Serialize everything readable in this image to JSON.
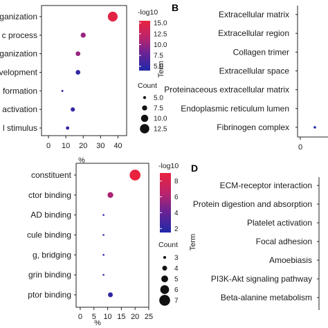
{
  "panels": [
    "B",
    "D"
  ],
  "chart_data": [
    {
      "type": "scatter",
      "categories": [
        "rganization",
        "c process",
        "rganization",
        "evelopment",
        "formation",
        "activation",
        "l stimulus"
      ],
      "values": [
        37,
        20,
        17,
        17,
        8,
        14,
        11
      ],
      "colors": [
        15,
        10,
        10,
        5,
        5,
        5,
        5
      ],
      "counts": [
        13,
        7.5,
        7,
        7,
        4,
        6.5,
        5.5
      ],
      "xlabel": "%",
      "xticks": [
        0,
        10,
        20,
        30,
        40
      ],
      "color_legend": {
        "title": "-log10",
        "ticks": [
          "15.0",
          "12.5",
          "10.0",
          "7.5",
          "5.0"
        ],
        "range": [
          4.0,
          15.5
        ]
      },
      "size_legend": {
        "title": "Count",
        "ticks": [
          "5.0",
          "7.5",
          "10.0",
          "12.5"
        ]
      }
    },
    {
      "type": "scatter",
      "categories": [
        "Extracellular matrix",
        "Extracellular region",
        "Collagen trimer",
        "Extracellular space",
        "Proteinaceous extracellular matrix",
        "Endoplasmic reticulum lumen",
        "Fibrinogen complex"
      ],
      "values": [
        null,
        null,
        null,
        null,
        null,
        null,
        5
      ],
      "ylabel": "Term",
      "xticks": [
        0
      ]
    },
    {
      "type": "scatter",
      "categories": [
        "constituent",
        "ctor binding",
        "AD binding",
        "cule binding",
        "g, bridging",
        "grin binding",
        "ptor binding"
      ],
      "values": [
        20,
        11,
        8.5,
        8.5,
        8.5,
        8.5,
        11
      ],
      "colors": [
        9,
        6,
        2,
        2,
        2,
        2,
        2
      ],
      "counts": [
        7,
        4.5,
        2.5,
        2.5,
        2.5,
        2.5,
        4
      ],
      "xlabel": "%",
      "xticks": [
        0,
        5,
        10,
        15,
        20,
        25
      ],
      "color_legend": {
        "title": "-log10",
        "ticks": [
          "8",
          "6",
          "4",
          "2"
        ],
        "range": [
          1.5,
          9.0
        ]
      },
      "size_legend": {
        "title": "Count",
        "ticks": [
          "3",
          "4",
          "5",
          "6",
          "7"
        ]
      }
    },
    {
      "type": "scatter",
      "categories": [
        "ECM-receptor interaction",
        "Protein digestion and absorption",
        "Platelet activation",
        "Focal adhesion",
        "Amoebiasis",
        "PI3K-Akt signaling pathway",
        "Beta-alanine metabolism"
      ],
      "values": [],
      "ylabel": "Term"
    }
  ]
}
